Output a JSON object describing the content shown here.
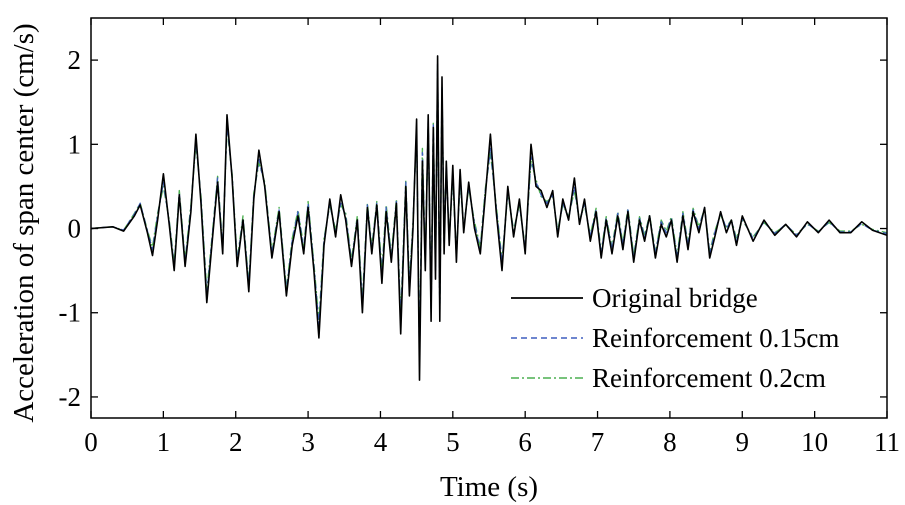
{
  "chart_data": {
    "type": "line",
    "title": "",
    "xlabel": "Time (s)",
    "ylabel": "Acceleration of span center (cm/s)",
    "xlim": [
      0,
      11
    ],
    "ylim": [
      -2.25,
      2.5
    ],
    "xticks": [
      0,
      1,
      2,
      3,
      4,
      5,
      6,
      7,
      8,
      9,
      10,
      11
    ],
    "xtick_labels": [
      "0",
      "1",
      "2",
      "3",
      "4",
      "5",
      "6",
      "7",
      "8",
      "9",
      "10",
      "11"
    ],
    "yticks": [
      -2,
      -1,
      0,
      1,
      2
    ],
    "ytick_labels": [
      "-2",
      "-1",
      "0",
      "1",
      "2"
    ],
    "grid": false,
    "legend_position": "bottom-right",
    "series": [
      {
        "name": "Original bridge",
        "color": "#000000",
        "dash": "solid",
        "x": [
          0,
          0.3,
          0.45,
          0.6,
          0.68,
          0.78,
          0.85,
          0.92,
          1.0,
          1.08,
          1.15,
          1.22,
          1.3,
          1.38,
          1.45,
          1.52,
          1.6,
          1.68,
          1.75,
          1.82,
          1.88,
          1.95,
          2.02,
          2.1,
          2.18,
          2.25,
          2.32,
          2.4,
          2.5,
          2.6,
          2.7,
          2.78,
          2.86,
          2.94,
          3.0,
          3.08,
          3.15,
          3.22,
          3.3,
          3.38,
          3.45,
          3.52,
          3.6,
          3.68,
          3.75,
          3.82,
          3.88,
          3.95,
          4.02,
          4.08,
          4.15,
          4.22,
          4.28,
          4.35,
          4.4,
          4.45,
          4.5,
          4.54,
          4.58,
          4.62,
          4.66,
          4.7,
          4.73,
          4.76,
          4.79,
          4.82,
          4.85,
          4.88,
          4.91,
          4.95,
          5.0,
          5.05,
          5.1,
          5.15,
          5.22,
          5.3,
          5.38,
          5.45,
          5.52,
          5.6,
          5.68,
          5.76,
          5.84,
          5.92,
          6.0,
          6.08,
          6.15,
          6.22,
          6.3,
          6.38,
          6.45,
          6.52,
          6.6,
          6.68,
          6.75,
          6.82,
          6.9,
          6.98,
          7.05,
          7.12,
          7.2,
          7.28,
          7.35,
          7.42,
          7.5,
          7.58,
          7.65,
          7.72,
          7.8,
          7.88,
          7.95,
          8.02,
          8.1,
          8.18,
          8.25,
          8.32,
          8.4,
          8.48,
          8.55,
          8.62,
          8.7,
          8.78,
          8.85,
          8.92,
          9.0,
          9.15,
          9.3,
          9.45,
          9.6,
          9.75,
          9.9,
          10.05,
          10.2,
          10.35,
          10.5,
          10.65,
          10.8,
          11.0
        ],
        "values": [
          0.0,
          0.02,
          -0.03,
          0.15,
          0.28,
          -0.05,
          -0.32,
          0.1,
          0.65,
          0.05,
          -0.5,
          0.4,
          -0.45,
          0.2,
          1.12,
          0.3,
          -0.88,
          -0.1,
          0.55,
          -0.3,
          1.35,
          0.6,
          -0.45,
          0.1,
          -0.75,
          0.35,
          0.93,
          0.5,
          -0.35,
          0.2,
          -0.8,
          -0.2,
          0.15,
          -0.3,
          0.25,
          -0.5,
          -1.3,
          -0.2,
          0.35,
          -0.1,
          0.4,
          0.1,
          -0.45,
          0.1,
          -1.0,
          0.25,
          -0.3,
          0.28,
          -0.65,
          0.2,
          -0.4,
          0.3,
          -1.25,
          0.5,
          -0.8,
          0.0,
          1.3,
          -1.8,
          0.8,
          -0.5,
          1.35,
          -1.1,
          1.2,
          -0.6,
          2.05,
          -1.1,
          1.8,
          -0.3,
          0.8,
          -0.2,
          0.75,
          -0.4,
          0.7,
          -0.05,
          0.55,
          0.0,
          -0.3,
          0.4,
          1.12,
          0.2,
          -0.5,
          0.5,
          -0.1,
          0.35,
          -0.3,
          1.0,
          0.5,
          0.45,
          0.25,
          0.45,
          -0.1,
          0.35,
          0.1,
          0.6,
          0.05,
          0.35,
          -0.15,
          0.2,
          -0.35,
          0.1,
          -0.3,
          0.15,
          -0.25,
          0.2,
          -0.4,
          0.1,
          -0.15,
          0.15,
          -0.35,
          0.05,
          -0.1,
          0.1,
          -0.4,
          0.15,
          -0.25,
          0.2,
          -0.05,
          0.25,
          -0.35,
          -0.1,
          0.2,
          -0.05,
          0.1,
          -0.2,
          0.15,
          -0.15,
          0.1,
          -0.08,
          0.05,
          -0.1,
          0.08,
          -0.05,
          0.1,
          -0.05,
          -0.05,
          0.08,
          -0.02,
          -0.08
        ]
      },
      {
        "name": "Reinforcement 0.15cm",
        "color": "#3f5fbf",
        "dash": "dashed",
        "x": [
          0,
          0.3,
          0.45,
          0.6,
          0.68,
          0.78,
          0.85,
          0.92,
          1.0,
          1.08,
          1.15,
          1.22,
          1.3,
          1.38,
          1.45,
          1.52,
          1.6,
          1.68,
          1.75,
          1.82,
          1.88,
          1.95,
          2.02,
          2.1,
          2.18,
          2.25,
          2.32,
          2.4,
          2.5,
          2.6,
          2.7,
          2.78,
          2.86,
          2.94,
          3.0,
          3.08,
          3.15,
          3.22,
          3.3,
          3.38,
          3.45,
          3.52,
          3.6,
          3.68,
          3.75,
          3.82,
          3.88,
          3.95,
          4.02,
          4.08,
          4.15,
          4.22,
          4.28,
          4.35,
          4.4,
          4.45,
          4.5,
          4.54,
          4.58,
          4.62,
          4.66,
          4.7,
          4.73,
          4.76,
          4.79,
          4.82,
          4.85,
          4.88,
          4.91,
          4.95,
          5.0,
          5.05,
          5.1,
          5.15,
          5.22,
          5.3,
          5.38,
          5.45,
          5.52,
          5.6,
          5.68,
          5.76,
          5.84,
          5.92,
          6.0,
          6.08,
          6.15,
          6.22,
          6.3,
          6.38,
          6.45,
          6.52,
          6.6,
          6.68,
          6.75,
          6.82,
          6.9,
          6.98,
          7.05,
          7.12,
          7.2,
          7.28,
          7.35,
          7.42,
          7.5,
          7.58,
          7.65,
          7.72,
          7.8,
          7.88,
          7.95,
          8.02,
          8.1,
          8.18,
          8.25,
          8.32,
          8.4,
          8.48,
          8.55,
          8.62,
          8.7,
          8.78,
          8.85,
          8.92,
          9.0,
          9.15,
          9.3,
          9.45,
          9.6,
          9.75,
          9.9,
          10.05,
          10.2,
          10.35,
          10.5,
          10.65,
          10.8,
          11.0
        ],
        "values": [
          0.0,
          0.02,
          -0.02,
          0.17,
          0.3,
          -0.03,
          -0.25,
          0.15,
          0.55,
          0.08,
          -0.45,
          0.42,
          -0.4,
          0.25,
          1.05,
          0.35,
          -0.8,
          -0.05,
          0.6,
          -0.25,
          1.25,
          0.62,
          -0.4,
          0.12,
          -0.68,
          0.4,
          0.82,
          0.52,
          -0.3,
          0.22,
          -0.75,
          -0.15,
          0.2,
          -0.25,
          0.3,
          -0.45,
          -1.15,
          -0.15,
          0.3,
          -0.05,
          0.3,
          0.15,
          -0.4,
          0.12,
          -0.9,
          0.28,
          -0.25,
          0.3,
          -0.55,
          0.25,
          -0.35,
          0.32,
          -1.1,
          0.55,
          -0.7,
          0.05,
          1.2,
          -1.6,
          0.9,
          -0.4,
          1.3,
          -1.0,
          1.25,
          -0.5,
          1.95,
          -1.0,
          1.7,
          -0.2,
          0.75,
          -0.15,
          0.65,
          -0.35,
          0.6,
          0.0,
          0.5,
          0.05,
          -0.25,
          0.45,
          0.95,
          0.25,
          -0.4,
          0.45,
          -0.05,
          0.3,
          -0.25,
          0.85,
          0.55,
          0.4,
          0.3,
          0.4,
          -0.05,
          0.3,
          0.12,
          0.5,
          0.08,
          0.3,
          -0.1,
          0.22,
          -0.3,
          0.12,
          -0.25,
          0.18,
          -0.2,
          0.22,
          -0.35,
          0.12,
          -0.1,
          0.15,
          -0.3,
          0.08,
          -0.05,
          0.12,
          -0.35,
          0.18,
          -0.2,
          0.22,
          0.0,
          0.25,
          -0.3,
          -0.05,
          0.18,
          0.0,
          0.1,
          -0.15,
          0.12,
          -0.12,
          0.08,
          -0.06,
          0.05,
          -0.08,
          0.06,
          -0.04,
          0.08,
          -0.04,
          -0.04,
          0.06,
          -0.02,
          -0.06
        ]
      },
      {
        "name": "Reinforcement 0.2cm",
        "color": "#4caf50",
        "dash": "dashdot",
        "x": [
          0,
          0.3,
          0.45,
          0.6,
          0.68,
          0.78,
          0.85,
          0.92,
          1.0,
          1.08,
          1.15,
          1.22,
          1.3,
          1.38,
          1.45,
          1.52,
          1.6,
          1.68,
          1.75,
          1.82,
          1.88,
          1.95,
          2.02,
          2.1,
          2.18,
          2.25,
          2.32,
          2.4,
          2.5,
          2.6,
          2.7,
          2.78,
          2.86,
          2.94,
          3.0,
          3.08,
          3.15,
          3.22,
          3.3,
          3.38,
          3.45,
          3.52,
          3.6,
          3.68,
          3.75,
          3.82,
          3.88,
          3.95,
          4.02,
          4.08,
          4.15,
          4.22,
          4.28,
          4.35,
          4.4,
          4.45,
          4.5,
          4.54,
          4.58,
          4.62,
          4.66,
          4.7,
          4.73,
          4.76,
          4.79,
          4.82,
          4.85,
          4.88,
          4.91,
          4.95,
          5.0,
          5.05,
          5.1,
          5.15,
          5.22,
          5.3,
          5.38,
          5.45,
          5.52,
          5.6,
          5.68,
          5.76,
          5.84,
          5.92,
          6.0,
          6.08,
          6.15,
          6.22,
          6.3,
          6.38,
          6.45,
          6.52,
          6.6,
          6.68,
          6.75,
          6.82,
          6.9,
          6.98,
          7.05,
          7.12,
          7.2,
          7.28,
          7.35,
          7.42,
          7.5,
          7.58,
          7.65,
          7.72,
          7.8,
          7.88,
          7.95,
          8.02,
          8.1,
          8.18,
          8.25,
          8.32,
          8.4,
          8.48,
          8.55,
          8.62,
          8.7,
          8.78,
          8.85,
          8.92,
          9.0,
          9.15,
          9.3,
          9.45,
          9.6,
          9.75,
          9.9,
          10.05,
          10.2,
          10.35,
          10.5,
          10.65,
          10.8,
          11.0
        ],
        "values": [
          0.0,
          0.02,
          -0.02,
          0.18,
          0.3,
          -0.02,
          -0.22,
          0.18,
          0.5,
          0.1,
          -0.42,
          0.45,
          -0.38,
          0.28,
          1.0,
          0.38,
          -0.75,
          -0.03,
          0.62,
          -0.22,
          1.2,
          0.65,
          -0.38,
          0.15,
          -0.65,
          0.42,
          0.78,
          0.55,
          -0.28,
          0.25,
          -0.72,
          -0.12,
          0.22,
          -0.22,
          0.32,
          -0.42,
          -1.1,
          -0.12,
          0.28,
          -0.02,
          0.28,
          0.18,
          -0.38,
          0.15,
          -0.85,
          0.3,
          -0.22,
          0.32,
          -0.5,
          0.28,
          -0.32,
          0.35,
          -1.05,
          0.58,
          -0.65,
          0.08,
          1.15,
          -1.5,
          0.95,
          -0.35,
          1.25,
          -0.95,
          1.25,
          -0.45,
          1.9,
          -0.95,
          1.65,
          -0.15,
          0.72,
          -0.12,
          0.6,
          -0.32,
          0.55,
          0.02,
          0.48,
          0.08,
          -0.22,
          0.48,
          0.9,
          0.28,
          -0.38,
          0.42,
          -0.02,
          0.28,
          -0.22,
          0.8,
          0.58,
          0.38,
          0.32,
          0.38,
          -0.02,
          0.28,
          0.14,
          0.45,
          0.1,
          0.28,
          -0.08,
          0.24,
          -0.28,
          0.14,
          -0.22,
          0.2,
          -0.18,
          0.24,
          -0.32,
          0.14,
          -0.08,
          0.16,
          -0.28,
          0.1,
          -0.03,
          0.14,
          -0.32,
          0.2,
          -0.18,
          0.24,
          0.02,
          0.24,
          -0.28,
          -0.03,
          0.16,
          0.02,
          0.1,
          -0.12,
          0.1,
          -0.1,
          0.07,
          -0.05,
          0.04,
          -0.07,
          0.05,
          -0.03,
          0.07,
          -0.03,
          -0.03,
          0.05,
          -0.01,
          -0.05
        ]
      }
    ]
  }
}
